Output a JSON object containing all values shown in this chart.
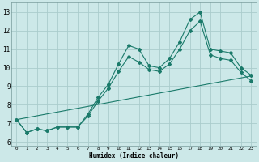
{
  "title": "",
  "xlabel": "Humidex (Indice chaleur)",
  "ylabel": "",
  "background_color": "#cce8e8",
  "grid_color": "#aacccc",
  "line_color": "#1a7a6a",
  "xlim": [
    -0.5,
    23.5
  ],
  "ylim": [
    5.8,
    13.5
  ],
  "xticks": [
    0,
    1,
    2,
    3,
    4,
    5,
    6,
    7,
    8,
    9,
    10,
    11,
    12,
    13,
    14,
    15,
    16,
    17,
    18,
    19,
    20,
    21,
    22,
    23
  ],
  "yticks": [
    6,
    7,
    8,
    9,
    10,
    11,
    12,
    13
  ],
  "line1_x": [
    0,
    1,
    2,
    3,
    4,
    5,
    6,
    7,
    8,
    9,
    10,
    11,
    12,
    13,
    14,
    15,
    16,
    17,
    18,
    19,
    20,
    21,
    22,
    23
  ],
  "line1_y": [
    7.2,
    6.5,
    6.7,
    6.6,
    6.8,
    6.8,
    6.8,
    7.5,
    8.4,
    9.1,
    10.2,
    11.2,
    11.0,
    10.1,
    10.0,
    10.5,
    11.4,
    12.6,
    13.0,
    11.0,
    10.9,
    10.8,
    10.0,
    9.6
  ],
  "line2_x": [
    0,
    1,
    2,
    3,
    4,
    5,
    6,
    7,
    8,
    9,
    10,
    11,
    12,
    13,
    14,
    15,
    16,
    17,
    18,
    19,
    20,
    21,
    22,
    23
  ],
  "line2_y": [
    7.2,
    6.5,
    6.7,
    6.6,
    6.8,
    6.8,
    6.8,
    7.4,
    8.2,
    8.9,
    9.8,
    10.6,
    10.3,
    9.9,
    9.8,
    10.2,
    11.0,
    12.0,
    12.5,
    10.7,
    10.5,
    10.4,
    9.75,
    9.3
  ],
  "line3_x": [
    0,
    23
  ],
  "line3_y": [
    7.2,
    9.55
  ],
  "xlabel_fontsize": 5.5,
  "xtick_fontsize": 4.2,
  "ytick_fontsize": 5.5
}
